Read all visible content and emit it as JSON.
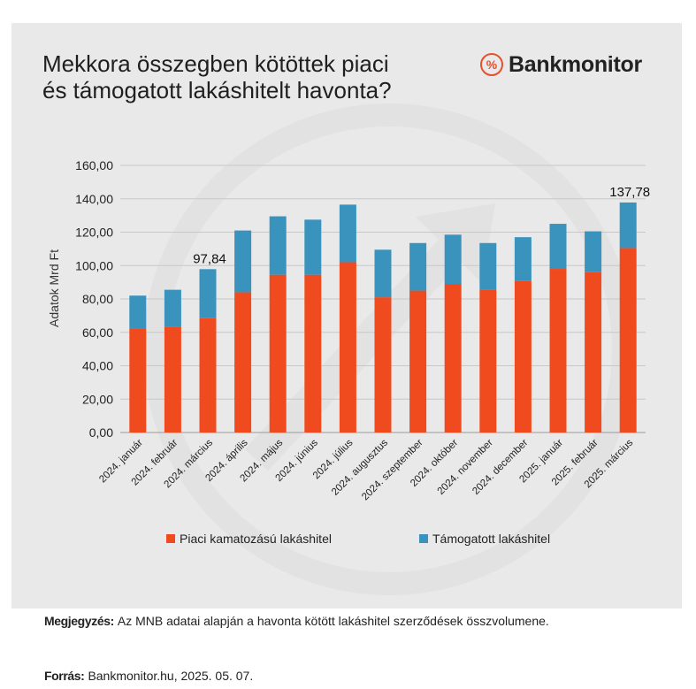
{
  "title_line1": "Mekkora összegben kötöttek piaci",
  "title_line2": "és támogatott lakáshitelt havonta?",
  "brand": {
    "badge": "%",
    "name": "Bankmonitor"
  },
  "note": {
    "label": "Megjegyzés:",
    "text": "Az MNB adatai alapján a havonta kötött lakáshitel szerződések összvolumene."
  },
  "source": {
    "label": "Forrás:",
    "text": "Bankmonitor.hu, 2025. 05. 07."
  },
  "colors": {
    "market": "#f04a1f",
    "subsidized": "#3a93bd",
    "grid": "#c8c8c8",
    "axis": "#9a9a9a"
  },
  "chart_data": {
    "type": "bar",
    "stacked": true,
    "ylabel": "Adatok Mrd Ft",
    "ylim": [
      0,
      160
    ],
    "yticks": [
      "0,00",
      "20,00",
      "40,00",
      "60,00",
      "80,00",
      "100,00",
      "120,00",
      "140,00",
      "160,00"
    ],
    "grid": true,
    "legend_position": "bottom",
    "categories": [
      "2024. január",
      "2024. február",
      "2024. március",
      "2024. április",
      "2024. május",
      "2024. június",
      "2024. július",
      "2024. augusztus",
      "2024. szeptember",
      "2024. október",
      "2024. november",
      "2024. december",
      "2025. január",
      "2025. február",
      "2025. március"
    ],
    "series": [
      {
        "name": "Piaci kamatozású lakáshitel",
        "values": [
          62,
          63.5,
          68.5,
          84,
          94.5,
          94.5,
          102,
          81,
          85,
          89,
          85.5,
          91,
          98,
          96,
          110.5
        ]
      },
      {
        "name": "Támogatott lakáshitel",
        "values": [
          20,
          22,
          29.34,
          37,
          35,
          33,
          34.5,
          28.5,
          28.5,
          29.5,
          28,
          26,
          27,
          24.5,
          27.28
        ]
      }
    ],
    "annotations": [
      {
        "category": "2024. március",
        "text": "97,84"
      },
      {
        "category": "2025. március",
        "text": "137,78"
      }
    ]
  }
}
